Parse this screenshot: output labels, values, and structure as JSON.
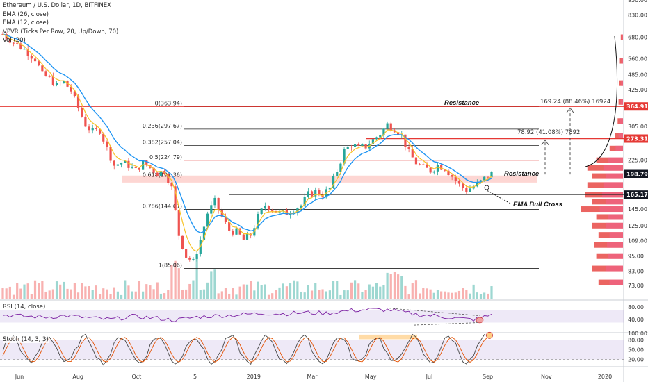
{
  "legend": {
    "title": "Ethereum / U.S. Dollar, 1D, BITFINEX",
    "ema1": "EMA (26, close)",
    "ema2": "EMA (12, close)",
    "vpvr": "VPVR (Ticks Per Row, 20, Up/Down, 70)",
    "vol": "Vol (20)"
  },
  "rsi_label": "RSI (14, close)",
  "stoch_label": "Stoch (14, 3, 3)",
  "annotations": {
    "resistance_top": "Resistance",
    "resistance_mid": "Resistance",
    "ema_bull_cross": "EMA Bull Cross",
    "measure_big": "169.24 (88.46%) 16924",
    "measure_small": "78.92 (41.08%) 7892"
  },
  "colors": {
    "up": "#26a69a",
    "down": "#ef5350",
    "ema26": "#2196f3",
    "ema12": "#f7c325",
    "rsi": "#7b1fa2",
    "stoch_k": "#444444",
    "stoch_d": "#e65100",
    "resistance": "#e53935",
    "fib": "#222222",
    "price_tag": "#e53935",
    "current_tag": "#131722"
  },
  "chart_data": {
    "type": "candlestick",
    "title": "Ethereum / U.S. Dollar, 1D, BITFINEX",
    "price_axis": {
      "scale": "log",
      "range": [
        64,
        950
      ],
      "ticks": [
        950,
        830,
        680,
        560,
        485,
        425,
        364.91,
        305,
        273.31,
        225,
        198.79,
        165.17,
        145,
        125,
        109,
        95,
        83,
        73
      ]
    },
    "price_tags": {
      "resistance_high": "364.91",
      "resistance_mid": "273.31",
      "current": "198.79",
      "support": "165.17"
    },
    "x_axis": {
      "labels": [
        "Jun",
        "Aug",
        "Oct",
        "5",
        "2019",
        "Mar",
        "May",
        "Jul",
        "Sep",
        "Nov",
        "2020"
      ]
    },
    "fib_levels": [
      {
        "label": "0(363.94)",
        "value": 363.94
      },
      {
        "label": "0.236(297.67)",
        "value": 297.67
      },
      {
        "label": "0.382(257.04)",
        "value": 257.04
      },
      {
        "label": "0.5(224.79)",
        "value": 224.79
      },
      {
        "label": "0.618(191.36)",
        "value": 191.36
      },
      {
        "label": "0.786(144.61)",
        "value": 144.61
      },
      {
        "label": "1(85.06)",
        "value": 85.06
      }
    ],
    "horizontal_levels": {
      "resistance": [
        364.91,
        273.31
      ],
      "support": 165.17,
      "current": 198.79
    },
    "price_path": [
      [
        0,
        700
      ],
      [
        3,
        650
      ],
      [
        6,
        610
      ],
      [
        9,
        560
      ],
      [
        11,
        485
      ],
      [
        13,
        470
      ],
      [
        15,
        440
      ],
      [
        17,
        455
      ],
      [
        19,
        420
      ],
      [
        21,
        360
      ],
      [
        23,
        310
      ],
      [
        25,
        290
      ],
      [
        27,
        295
      ],
      [
        29,
        250
      ],
      [
        31,
        215
      ],
      [
        33,
        220
      ],
      [
        35,
        215
      ],
      [
        37,
        205
      ],
      [
        39,
        220
      ],
      [
        41,
        210
      ],
      [
        43,
        200
      ],
      [
        45,
        205
      ],
      [
        47,
        175
      ],
      [
        49,
        115
      ],
      [
        51,
        95
      ],
      [
        53,
        90
      ],
      [
        55,
        110
      ],
      [
        57,
        140
      ],
      [
        59,
        155
      ],
      [
        61,
        135
      ],
      [
        63,
        120
      ],
      [
        65,
        118
      ],
      [
        67,
        110
      ],
      [
        69,
        115
      ],
      [
        71,
        135
      ],
      [
        73,
        150
      ],
      [
        75,
        145
      ],
      [
        77,
        140
      ],
      [
        79,
        140
      ],
      [
        81,
        145
      ],
      [
        83,
        150
      ],
      [
        85,
        165
      ],
      [
        87,
        170
      ],
      [
        89,
        165
      ],
      [
        91,
        175
      ],
      [
        93,
        205
      ],
      [
        95,
        245
      ],
      [
        97,
        260
      ],
      [
        99,
        250
      ],
      [
        101,
        255
      ],
      [
        103,
        270
      ],
      [
        105,
        285
      ],
      [
        107,
        310
      ],
      [
        109,
        300
      ],
      [
        111,
        280
      ],
      [
        113,
        240
      ],
      [
        115,
        220
      ],
      [
        117,
        210
      ],
      [
        119,
        205
      ],
      [
        121,
        215
      ],
      [
        123,
        210
      ],
      [
        125,
        195
      ],
      [
        127,
        180
      ],
      [
        129,
        172
      ],
      [
        131,
        178
      ],
      [
        133,
        185
      ],
      [
        135,
        196
      ],
      [
        136,
        198.79
      ]
    ],
    "rsi": {
      "range": [
        0,
        100
      ],
      "ticks": [
        80,
        40
      ],
      "band": [
        30,
        70
      ],
      "path": [
        [
          0,
          55
        ],
        [
          6,
          50
        ],
        [
          12,
          48
        ],
        [
          18,
          52
        ],
        [
          24,
          45
        ],
        [
          30,
          40
        ],
        [
          36,
          50
        ],
        [
          42,
          45
        ],
        [
          48,
          38
        ],
        [
          54,
          48
        ],
        [
          60,
          52
        ],
        [
          66,
          55
        ],
        [
          72,
          60
        ],
        [
          78,
          58
        ],
        [
          84,
          62
        ],
        [
          90,
          60
        ],
        [
          96,
          68
        ],
        [
          102,
          72
        ],
        [
          108,
          70
        ],
        [
          112,
          62
        ],
        [
          116,
          55
        ],
        [
          120,
          52
        ],
        [
          124,
          47
        ],
        [
          128,
          42
        ],
        [
          131,
          40
        ],
        [
          134,
          48
        ],
        [
          136,
          56
        ]
      ]
    },
    "stoch": {
      "range": [
        0,
        100
      ],
      "ticks": [
        100,
        80,
        50,
        20
      ],
      "band": [
        20,
        80
      ]
    },
    "vpvr_profile": [
      {
        "price": 75,
        "value": 0.55
      },
      {
        "price": 85,
        "value": 0.7
      },
      {
        "price": 95,
        "value": 0.6
      },
      {
        "price": 105,
        "value": 0.65
      },
      {
        "price": 115,
        "value": 0.55
      },
      {
        "price": 125,
        "value": 0.7
      },
      {
        "price": 135,
        "value": 0.6
      },
      {
        "price": 145,
        "value": 0.95
      },
      {
        "price": 155,
        "value": 0.7
      },
      {
        "price": 165,
        "value": 0.85
      },
      {
        "price": 180,
        "value": 0.8
      },
      {
        "price": 195,
        "value": 0.7
      },
      {
        "price": 210,
        "value": 0.8
      },
      {
        "price": 225,
        "value": 0.6
      },
      {
        "price": 250,
        "value": 0.3
      },
      {
        "price": 280,
        "value": 0.18
      },
      {
        "price": 320,
        "value": 0.12
      },
      {
        "price": 380,
        "value": 0.1
      },
      {
        "price": 450,
        "value": 0.08
      },
      {
        "price": 550,
        "value": 0.07
      },
      {
        "price": 680,
        "value": 0.05
      }
    ]
  }
}
